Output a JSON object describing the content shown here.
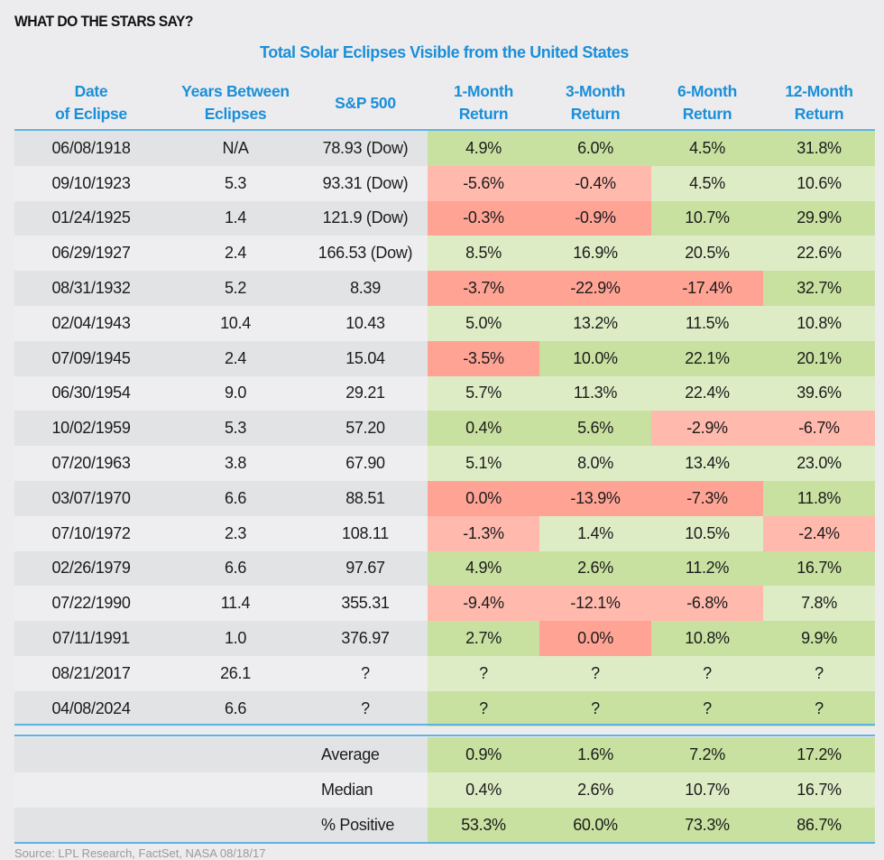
{
  "heading": "WHAT DO THE STARS SAY?",
  "table_title": "Total Solar Eclipses Visible from the United States",
  "columns": {
    "date": [
      "Date",
      "of Eclipse"
    ],
    "years": [
      "Years Between",
      "Eclipses"
    ],
    "sp500": [
      "S&P 500"
    ],
    "m1": [
      "1-Month",
      "Return"
    ],
    "m3": [
      "3-Month",
      "Return"
    ],
    "m6": [
      "6-Month",
      "Return"
    ],
    "m12": [
      "12-Month",
      "Return"
    ]
  },
  "colors": {
    "accent": "#1a8fd8",
    "green_dark": "#c8e1a0",
    "green_light": "#deecc5",
    "red_dark": "#ffa394",
    "red_light": "#ffb9ad"
  },
  "rows": [
    {
      "date": "06/08/1918",
      "years": "N/A",
      "sp500": "78.93 (Dow)",
      "returns": [
        [
          "4.9%",
          "green-dark"
        ],
        [
          "6.0%",
          "green-dark"
        ],
        [
          "4.5%",
          "green-dark"
        ],
        [
          "31.8%",
          "green-dark"
        ]
      ]
    },
    {
      "date": "09/10/1923",
      "years": "5.3",
      "sp500": "93.31 (Dow)",
      "returns": [
        [
          "-5.6%",
          "red-light"
        ],
        [
          "-0.4%",
          "red-light"
        ],
        [
          "4.5%",
          "green-light"
        ],
        [
          "10.6%",
          "green-light"
        ]
      ]
    },
    {
      "date": "01/24/1925",
      "years": "1.4",
      "sp500": "121.9 (Dow)",
      "returns": [
        [
          "-0.3%",
          "red-dark"
        ],
        [
          "-0.9%",
          "red-dark"
        ],
        [
          "10.7%",
          "green-dark"
        ],
        [
          "29.9%",
          "green-dark"
        ]
      ]
    },
    {
      "date": "06/29/1927",
      "years": "2.4",
      "sp500": "166.53 (Dow)",
      "returns": [
        [
          "8.5%",
          "green-light"
        ],
        [
          "16.9%",
          "green-light"
        ],
        [
          "20.5%",
          "green-light"
        ],
        [
          "22.6%",
          "green-light"
        ]
      ]
    },
    {
      "date": "08/31/1932",
      "years": "5.2",
      "sp500": "8.39",
      "returns": [
        [
          "-3.7%",
          "red-dark"
        ],
        [
          "-22.9%",
          "red-dark"
        ],
        [
          "-17.4%",
          "red-dark"
        ],
        [
          "32.7%",
          "green-dark"
        ]
      ]
    },
    {
      "date": "02/04/1943",
      "years": "10.4",
      "sp500": "10.43",
      "returns": [
        [
          "5.0%",
          "green-light"
        ],
        [
          "13.2%",
          "green-light"
        ],
        [
          "11.5%",
          "green-light"
        ],
        [
          "10.8%",
          "green-light"
        ]
      ]
    },
    {
      "date": "07/09/1945",
      "years": "2.4",
      "sp500": "15.04",
      "returns": [
        [
          "-3.5%",
          "red-dark"
        ],
        [
          "10.0%",
          "green-dark"
        ],
        [
          "22.1%",
          "green-dark"
        ],
        [
          "20.1%",
          "green-dark"
        ]
      ]
    },
    {
      "date": "06/30/1954",
      "years": "9.0",
      "sp500": "29.21",
      "returns": [
        [
          "5.7%",
          "green-light"
        ],
        [
          "11.3%",
          "green-light"
        ],
        [
          "22.4%",
          "green-light"
        ],
        [
          "39.6%",
          "green-light"
        ]
      ]
    },
    {
      "date": "10/02/1959",
      "years": "5.3",
      "sp500": "57.20",
      "returns": [
        [
          "0.4%",
          "green-dark"
        ],
        [
          "5.6%",
          "green-dark"
        ],
        [
          "-2.9%",
          "red-light"
        ],
        [
          "-6.7%",
          "red-light"
        ]
      ]
    },
    {
      "date": "07/20/1963",
      "years": "3.8",
      "sp500": "67.90",
      "returns": [
        [
          "5.1%",
          "green-light"
        ],
        [
          "8.0%",
          "green-light"
        ],
        [
          "13.4%",
          "green-light"
        ],
        [
          "23.0%",
          "green-light"
        ]
      ]
    },
    {
      "date": "03/07/1970",
      "years": "6.6",
      "sp500": "88.51",
      "returns": [
        [
          "0.0%",
          "red-dark"
        ],
        [
          "-13.9%",
          "red-dark"
        ],
        [
          "-7.3%",
          "red-dark"
        ],
        [
          "11.8%",
          "green-dark"
        ]
      ]
    },
    {
      "date": "07/10/1972",
      "years": "2.3",
      "sp500": "108.11",
      "returns": [
        [
          "-1.3%",
          "red-light"
        ],
        [
          "1.4%",
          "green-light"
        ],
        [
          "10.5%",
          "green-light"
        ],
        [
          "-2.4%",
          "red-light"
        ]
      ]
    },
    {
      "date": "02/26/1979",
      "years": "6.6",
      "sp500": "97.67",
      "returns": [
        [
          "4.9%",
          "green-dark"
        ],
        [
          "2.6%",
          "green-dark"
        ],
        [
          "11.2%",
          "green-dark"
        ],
        [
          "16.7%",
          "green-dark"
        ]
      ]
    },
    {
      "date": "07/22/1990",
      "years": "11.4",
      "sp500": "355.31",
      "returns": [
        [
          "-9.4%",
          "red-light"
        ],
        [
          "-12.1%",
          "red-light"
        ],
        [
          "-6.8%",
          "red-light"
        ],
        [
          "7.8%",
          "green-light"
        ]
      ]
    },
    {
      "date": "07/11/1991",
      "years": "1.0",
      "sp500": "376.97",
      "returns": [
        [
          "2.7%",
          "green-dark"
        ],
        [
          "0.0%",
          "red-dark"
        ],
        [
          "10.8%",
          "green-dark"
        ],
        [
          "9.9%",
          "green-dark"
        ]
      ]
    },
    {
      "date": "08/21/2017",
      "years": "26.1",
      "sp500": "?",
      "returns": [
        [
          "?",
          "green-light"
        ],
        [
          "?",
          "green-light"
        ],
        [
          "?",
          "green-light"
        ],
        [
          "?",
          "green-light"
        ]
      ]
    },
    {
      "date": "04/08/2024",
      "years": "6.6",
      "sp500": "?",
      "returns": [
        [
          "?",
          "green-dark"
        ],
        [
          "?",
          "green-dark"
        ],
        [
          "?",
          "green-dark"
        ],
        [
          "?",
          "green-dark"
        ]
      ]
    }
  ],
  "summary": [
    {
      "label": "Average",
      "returns": [
        [
          "0.9%",
          "green-dark"
        ],
        [
          "1.6%",
          "green-dark"
        ],
        [
          "7.2%",
          "green-dark"
        ],
        [
          "17.2%",
          "green-dark"
        ]
      ]
    },
    {
      "label": "Median",
      "returns": [
        [
          "0.4%",
          "green-light"
        ],
        [
          "2.6%",
          "green-light"
        ],
        [
          "10.7%",
          "green-light"
        ],
        [
          "16.7%",
          "green-light"
        ]
      ]
    },
    {
      "label": "% Positive",
      "returns": [
        [
          "53.3%",
          "green-dark"
        ],
        [
          "60.0%",
          "green-dark"
        ],
        [
          "73.3%",
          "green-dark"
        ],
        [
          "86.7%",
          "green-dark"
        ]
      ]
    }
  ],
  "source": "Source: LPL Research, FactSet, NASA   08/18/17"
}
